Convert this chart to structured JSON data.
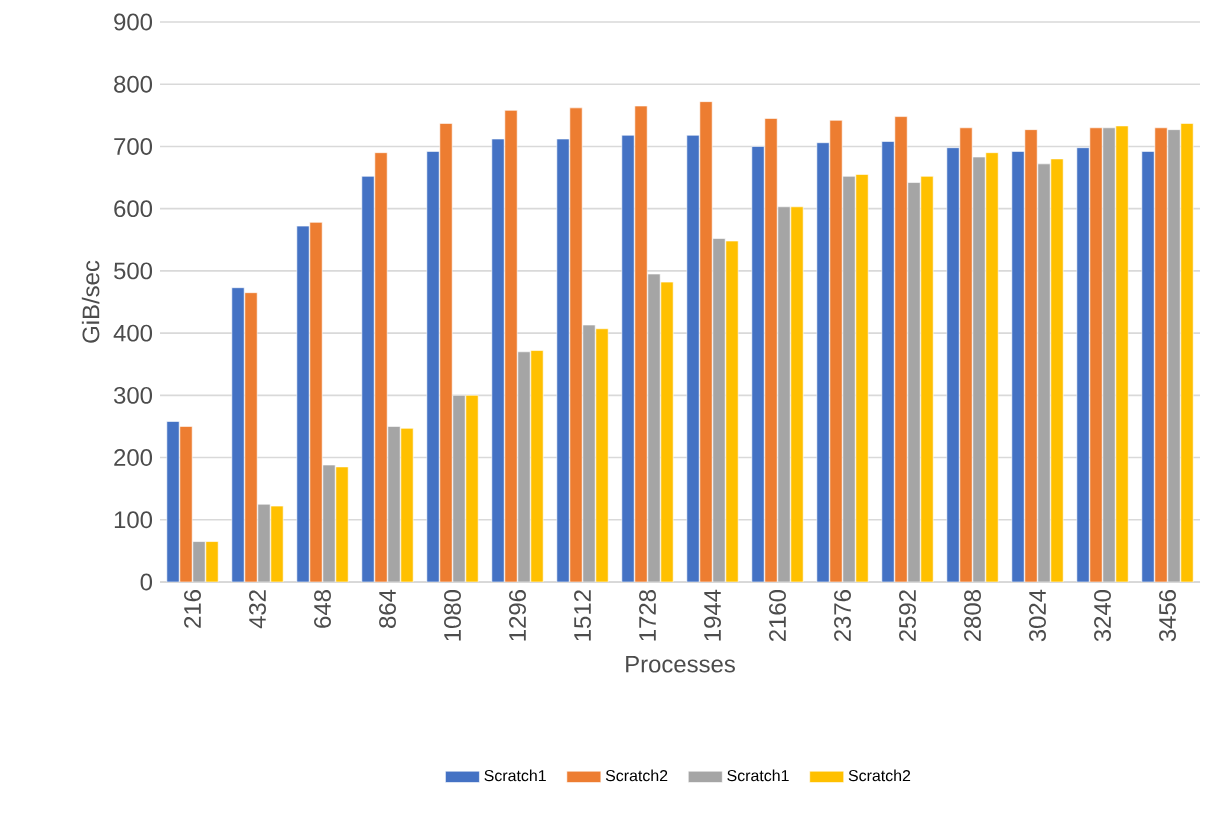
{
  "chart_data": {
    "type": "bar",
    "xlabel": "Processes",
    "ylabel": "GiB/sec",
    "categories": [
      "216",
      "432",
      "648",
      "864",
      "1080",
      "1296",
      "1512",
      "1728",
      "1944",
      "2160",
      "2376",
      "2592",
      "2808",
      "3024",
      "3240",
      "3456"
    ],
    "series": [
      {
        "name": "Scratch1",
        "color": "#4472c4",
        "values": [
          258,
          473,
          572,
          652,
          692,
          712,
          712,
          718,
          718,
          700,
          706,
          708,
          698,
          692,
          698,
          692
        ]
      },
      {
        "name": "Scratch2",
        "color": "#ed7d31",
        "values": [
          250,
          465,
          578,
          690,
          737,
          758,
          762,
          765,
          772,
          745,
          742,
          748,
          730,
          727,
          730,
          730
        ]
      },
      {
        "name": "Scratch1",
        "color": "#a5a5a5",
        "values": [
          65,
          125,
          188,
          250,
          300,
          370,
          413,
          495,
          552,
          603,
          652,
          642,
          683,
          672,
          730,
          727
        ]
      },
      {
        "name": "Scratch2",
        "color": "#ffc000",
        "values": [
          65,
          122,
          185,
          247,
          300,
          372,
          407,
          482,
          548,
          603,
          655,
          652,
          690,
          680,
          733,
          737
        ]
      }
    ],
    "ylim": [
      0,
      900
    ],
    "yticks": [
      0,
      100,
      200,
      300,
      400,
      500,
      600,
      700,
      800,
      900
    ],
    "grid": "y",
    "legend": "bottom"
  }
}
